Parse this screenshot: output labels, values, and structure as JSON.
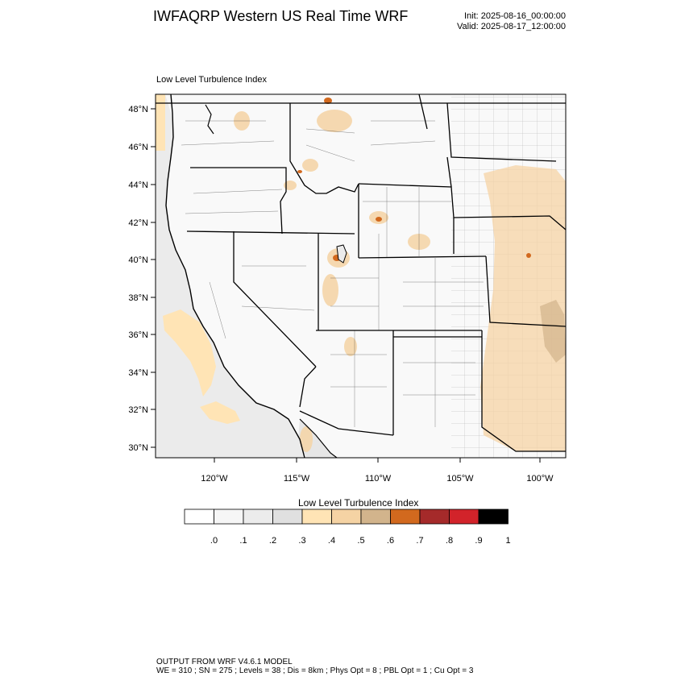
{
  "header": {
    "title": "IWFAQRP Western US Real Time WRF",
    "init_label": "Init: 2025-08-16_00:00:00",
    "valid_label": "Valid: 2025-08-17_12:00:00"
  },
  "map": {
    "field_label": "Low Level Turbulence Index",
    "lat_ticks": [
      "48°N",
      "46°N",
      "44°N",
      "42°N",
      "40°N",
      "38°N",
      "36°N",
      "34°N",
      "32°N",
      "30°N"
    ],
    "lon_ticks": [
      "120°W",
      "115°W",
      "110°W",
      "105°W",
      "100°W"
    ]
  },
  "colorbar": {
    "title": "Low Level Turbulence Index",
    "labels": [
      ".0",
      ".1",
      ".2",
      ".3",
      ".4",
      ".5",
      ".6",
      ".7",
      ".8",
      ".9",
      "1"
    ],
    "colors": [
      "#ffffff",
      "#f6f6f6",
      "#ececec",
      "#e0e0e0",
      "#ffe4b5",
      "#f5d3a4",
      "#d2b48c",
      "#d2691e",
      "#a52a2a",
      "#d2232a",
      "#000000"
    ]
  },
  "footer": {
    "line1": "OUTPUT FROM WRF V4.6.1 MODEL",
    "line2": "WE = 310 ; SN = 275 ; Levels = 38 ; Dis = 8km ; Phys Opt = 8 ; PBL Opt = 1 ; Cu Opt = 3"
  }
}
